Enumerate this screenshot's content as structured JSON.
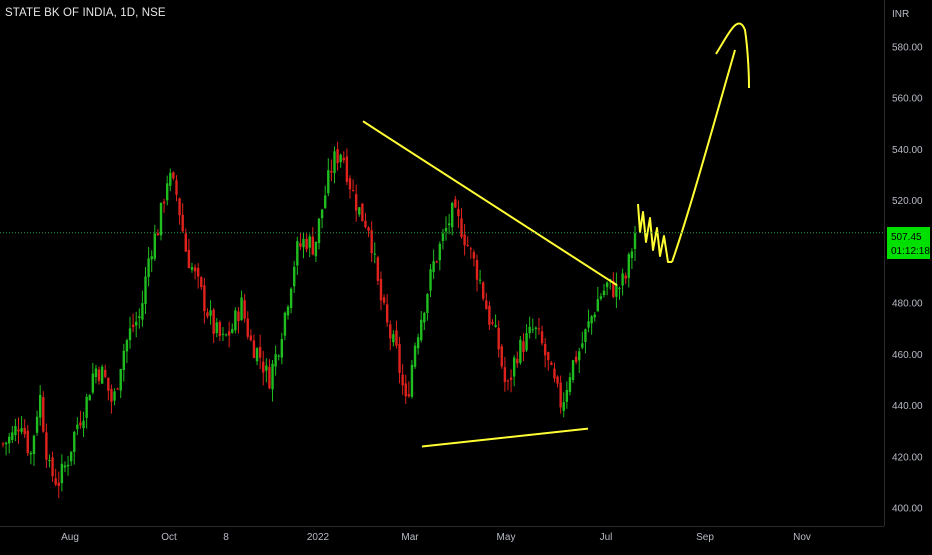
{
  "header": {
    "symbol_title": "STATE BK OF INDIA, 1D, NSE"
  },
  "price_axis": {
    "currency": "INR"
  },
  "last_price": {
    "value": "507.45",
    "countdown": "01:12:18",
    "color": "#00e000"
  },
  "colors": {
    "background": "#000000",
    "up_candle": "#1fbd1f",
    "down_candle": "#e0221d",
    "drawing": "#ffff33",
    "axis_line": "#2a2a2a",
    "price_line": "#2ea043"
  },
  "chart_data": {
    "type": "candlestick",
    "title": "STATE BK OF INDIA, 1D, NSE",
    "ylabel": "INR",
    "ylim": [
      395,
      595
    ],
    "grid": false,
    "y_ticks": [
      "400.00",
      "420.00",
      "440.00",
      "460.00",
      "480.00",
      "500.00",
      "520.00",
      "540.00",
      "560.00",
      "580.00"
    ],
    "x_ticks": [
      "Aug",
      "Oct",
      "8",
      "2022",
      "Mar",
      "May",
      "Jul",
      "Sep",
      "Nov"
    ],
    "last_close": 507.45,
    "close_path": [
      [
        "Jun 2021",
        425
      ],
      [
        "Jul 2021",
        428
      ],
      [
        "Jul 2021",
        435
      ],
      [
        "Jul 2021",
        420
      ],
      [
        "Aug 2021",
        445
      ],
      [
        "Aug 2021",
        415
      ],
      [
        "Aug 2021",
        410
      ],
      [
        "Aug 2021",
        418
      ],
      [
        "Sep 2021",
        432
      ],
      [
        "Sep 2021",
        440
      ],
      [
        "Sep 2021",
        455
      ],
      [
        "Sep 2021",
        452
      ],
      [
        "Sep 2021",
        440
      ],
      [
        "Sep 2021",
        460
      ],
      [
        "Oct 2021",
        470
      ],
      [
        "Oct 2021",
        475
      ],
      [
        "Oct 2021",
        500
      ],
      [
        "Oct 2021",
        510
      ],
      [
        "Oct 2021",
        530
      ],
      [
        "Oct 2021",
        522
      ],
      [
        "Nov 2021",
        500
      ],
      [
        "Nov 2021",
        490
      ],
      [
        "Nov 2021",
        480
      ],
      [
        "Nov 2021",
        470
      ],
      [
        "Dec 2021",
        465
      ],
      [
        "Dec 2021",
        470
      ],
      [
        "Dec 2021",
        480
      ],
      [
        "Dec 2021",
        465
      ],
      [
        "Dec 2021",
        460
      ],
      [
        "Dec 2021",
        450
      ],
      [
        "Jan 2022",
        462
      ],
      [
        "Jan 2022",
        480
      ],
      [
        "Jan 2022",
        500
      ],
      [
        "Jan 2022",
        505
      ],
      [
        "Jan 2022",
        502
      ],
      [
        "Feb 2022",
        520
      ],
      [
        "Feb 2022",
        535
      ],
      [
        "Feb 2022",
        540
      ],
      [
        "Feb 2022",
        525
      ],
      [
        "Feb 2022",
        515
      ],
      [
        "Mar 2022",
        510
      ],
      [
        "Mar 2022",
        485
      ],
      [
        "Mar 2022",
        470
      ],
      [
        "Mar 2022",
        460
      ],
      [
        "Mar 2022",
        440
      ],
      [
        "Mar 2022",
        465
      ],
      [
        "Mar 2022",
        480
      ],
      [
        "Apr 2022",
        495
      ],
      [
        "Apr 2022",
        505
      ],
      [
        "Apr 2022",
        515
      ],
      [
        "Apr 2022",
        510
      ],
      [
        "Apr 2022",
        500
      ],
      [
        "May 2022",
        490
      ],
      [
        "May 2022",
        475
      ],
      [
        "May 2022",
        465
      ],
      [
        "May 2022",
        445
      ],
      [
        "May 2022",
        460
      ],
      [
        "Jun 2022",
        465
      ],
      [
        "Jun 2022",
        470
      ],
      [
        "Jun 2022",
        462
      ],
      [
        "Jun 2022",
        450
      ],
      [
        "Jun 2022",
        440
      ],
      [
        "Jun 2022",
        455
      ],
      [
        "Jun 2022",
        462
      ],
      [
        "Jul 2022",
        472
      ],
      [
        "Jul 2022",
        482
      ],
      [
        "Jul 2022",
        487
      ],
      [
        "Jul 2022",
        485
      ],
      [
        "Jul 2022",
        490
      ],
      [
        "Jul 2022",
        507.45
      ]
    ],
    "annotations": [
      {
        "kind": "trendline",
        "name": "descending-resistance",
        "from": [
          "Feb 2022",
          551
        ],
        "to": [
          "Jul 2022",
          487
        ]
      },
      {
        "kind": "trendline",
        "name": "ascending-support",
        "from": [
          "Mar 2022",
          424
        ],
        "to": [
          "Jun 2022",
          431
        ]
      },
      {
        "kind": "freehand",
        "name": "projected-path",
        "from": [
          "Jul 2022",
          505
        ],
        "to": [
          "Sep 2022",
          592
        ]
      }
    ]
  }
}
